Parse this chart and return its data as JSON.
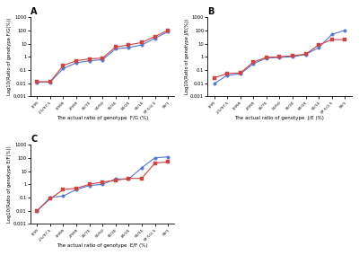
{
  "x_labels": [
    "1/99",
    "2.5/97.5",
    "1/999",
    "2/999",
    "30/70",
    "50/50",
    "70/30",
    "80/20",
    "90/10",
    "97.5/2.5",
    "99/1"
  ],
  "panel_A": {
    "title": "A",
    "xlabel": "The actual ratio of genotype  F/G (%)",
    "ylabel": "Log10(Ratio of genotype F/G(%))",
    "blue": [
      0.012,
      0.012,
      0.13,
      0.35,
      0.5,
      0.6,
      4.0,
      5.0,
      8.0,
      25.0,
      80.0
    ],
    "red": [
      0.013,
      0.013,
      0.22,
      0.5,
      0.7,
      0.8,
      5.5,
      8.0,
      12.0,
      35.0,
      100.0
    ]
  },
  "panel_B": {
    "title": "B",
    "xlabel": "The actual ratio of genotype  J/E (%)",
    "ylabel": "Log10(Ratio of genotype J/E(%))",
    "blue": [
      0.009,
      0.04,
      0.05,
      0.3,
      0.8,
      0.9,
      1.0,
      1.5,
      5.0,
      50.0,
      100.0
    ],
    "red": [
      0.025,
      0.055,
      0.06,
      0.4,
      0.9,
      1.0,
      1.2,
      1.6,
      8.0,
      20.0,
      20.0
    ]
  },
  "panel_C": {
    "title": "C",
    "xlabel": "The actual ratio of genotype  E/F (%)",
    "ylabel": "Log10(Ratio of genotype E/F(%))",
    "blue": [
      0.01,
      0.1,
      0.13,
      0.4,
      0.8,
      1.0,
      2.5,
      2.5,
      18.0,
      100.0,
      120.0
    ],
    "red": [
      0.01,
      0.08,
      0.4,
      0.5,
      1.0,
      1.5,
      2.0,
      2.8,
      2.8,
      40.0,
      50.0
    ]
  },
  "blue_color": "#5577cc",
  "red_color": "#cc4444",
  "marker_size": 2.5,
  "line_width": 0.8,
  "bg_color": "#f8f8f8"
}
